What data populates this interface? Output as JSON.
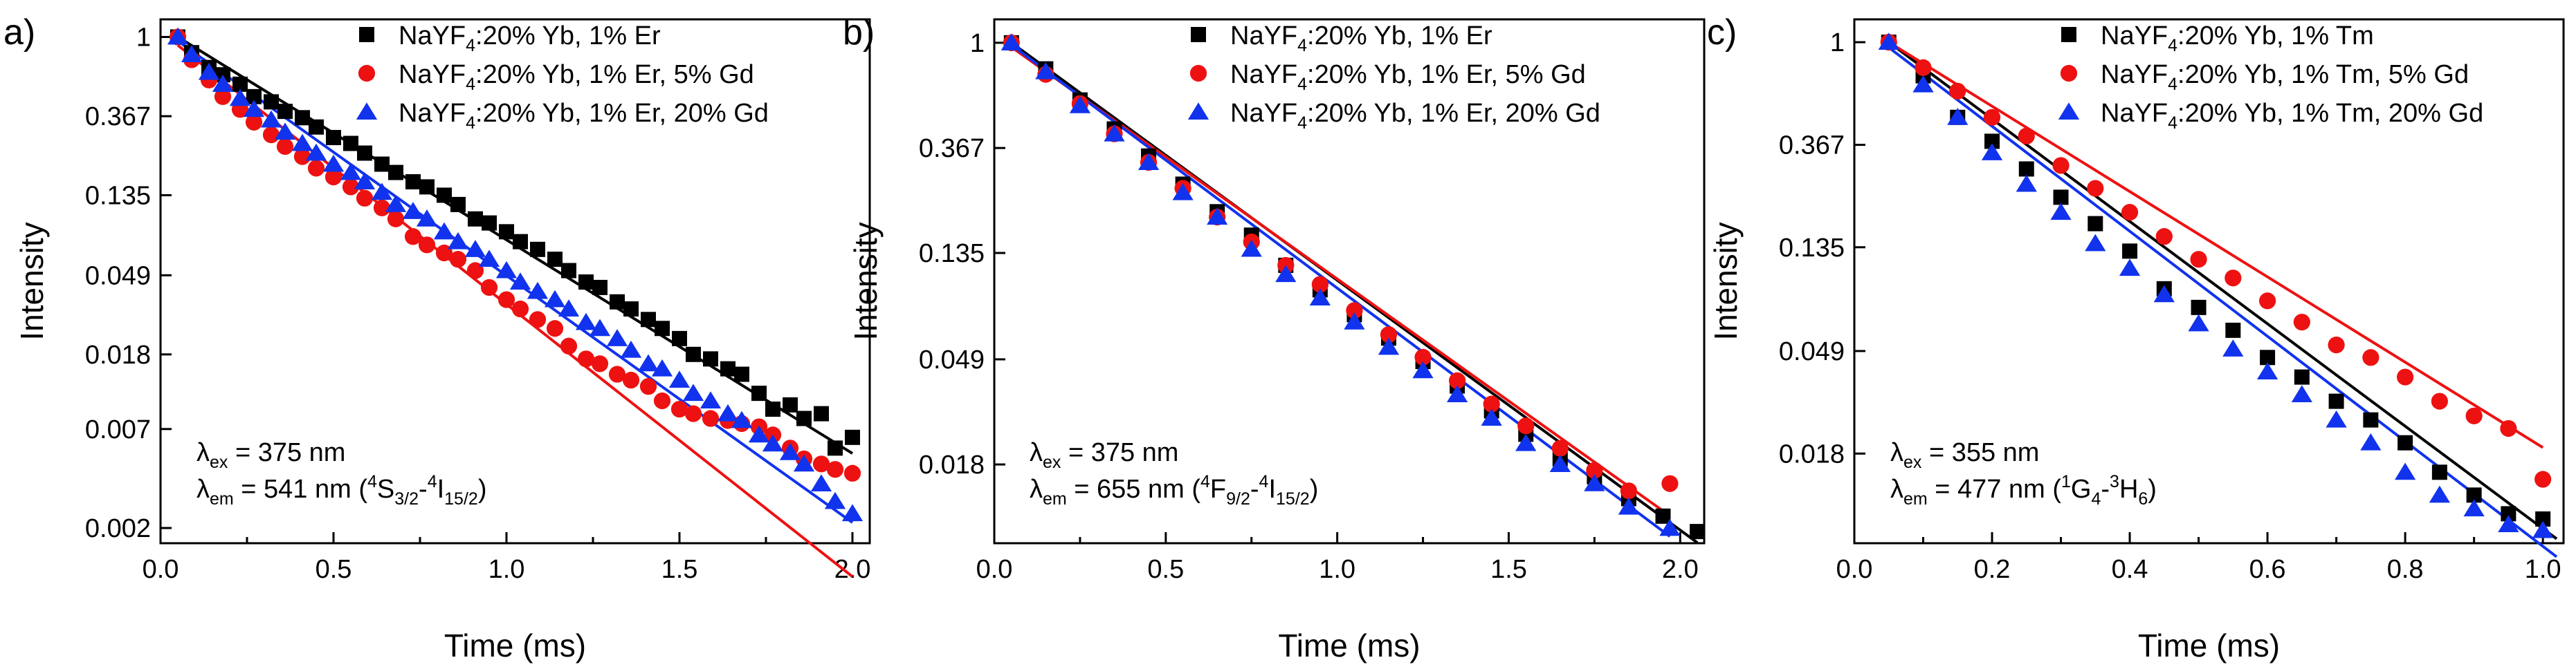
{
  "chart_data": [
    {
      "type": "scatter",
      "panel_label": "a)",
      "xlabel": "Time (ms)",
      "ylabel": "Intensity",
      "xlim": [
        0,
        2.05
      ],
      "ylim_log": [
        0.00165,
        1.25
      ],
      "xticks": [
        0.0,
        0.5,
        1.0,
        1.5,
        2.0
      ],
      "xtick_labels": [
        "0.0",
        "0.5",
        "1.0",
        "1.5",
        "2.0"
      ],
      "yticks": [
        1,
        0.367,
        0.135,
        0.049,
        0.018,
        0.007,
        0.002
      ],
      "ytick_labels": [
        "1",
        "0.367",
        "0.135",
        "0.049",
        "0.018",
        "0.007",
        "0.002"
      ],
      "annotation": {
        "ex": {
          "sym": "λ",
          "sub": "ex",
          "text": " = 375 nm"
        },
        "em": {
          "sym": "λ",
          "sub": "em",
          "text1": " = 541 nm (",
          "sup1": "4",
          "t2": "S",
          "sub2": "3/2",
          "t3": "-",
          "sup3": "4",
          "t4": "I",
          "sub4": "15/2",
          "t5": ")"
        }
      },
      "series": [
        {
          "name": "NaYF4:20% Yb, 1% Er",
          "legend": {
            "p1": "NaYF",
            "sub": "4",
            "p2": ":20% Yb, 1% Er"
          },
          "marker": "square",
          "color": "#000000",
          "fit": {
            "x0": 0.05,
            "x1": 2.0,
            "y0": 1.0,
            "tau": 0.37
          },
          "x": [
            0.05,
            0.09,
            0.14,
            0.18,
            0.23,
            0.27,
            0.32,
            0.36,
            0.41,
            0.45,
            0.5,
            0.55,
            0.59,
            0.64,
            0.68,
            0.73,
            0.77,
            0.82,
            0.86,
            0.91,
            0.95,
            1.0,
            1.04,
            1.09,
            1.14,
            1.18,
            1.23,
            1.27,
            1.32,
            1.36,
            1.41,
            1.45,
            1.5,
            1.54,
            1.59,
            1.64,
            1.68,
            1.73,
            1.77,
            1.82,
            1.86,
            1.91,
            1.95,
            2.0
          ],
          "y": [
            1.0,
            0.82,
            0.68,
            0.62,
            0.55,
            0.47,
            0.44,
            0.39,
            0.36,
            0.32,
            0.28,
            0.26,
            0.23,
            0.2,
            0.18,
            0.16,
            0.15,
            0.135,
            0.12,
            0.1,
            0.095,
            0.085,
            0.075,
            0.068,
            0.06,
            0.052,
            0.045,
            0.042,
            0.035,
            0.032,
            0.028,
            0.025,
            0.022,
            0.018,
            0.017,
            0.015,
            0.014,
            0.011,
            0.009,
            0.0095,
            0.008,
            0.0085,
            0.0055,
            0.0063
          ]
        },
        {
          "name": "NaYF4:20% Yb, 1% Er, 5% Gd",
          "legend": {
            "p1": "NaYF",
            "sub": "4",
            "p2": ":20% Yb, 1% Er, 5% Gd"
          },
          "marker": "circle",
          "color": "#ee1111",
          "fit": {
            "x0": 0.05,
            "x1": 2.0,
            "y0": 0.9,
            "tau": 0.29
          },
          "x": [
            0.05,
            0.09,
            0.14,
            0.18,
            0.23,
            0.27,
            0.32,
            0.36,
            0.41,
            0.45,
            0.5,
            0.55,
            0.59,
            0.64,
            0.68,
            0.73,
            0.77,
            0.82,
            0.86,
            0.91,
            0.95,
            1.0,
            1.04,
            1.09,
            1.14,
            1.18,
            1.23,
            1.27,
            1.32,
            1.36,
            1.41,
            1.45,
            1.5,
            1.54,
            1.59,
            1.64,
            1.68,
            1.73,
            1.77,
            1.82,
            1.86,
            1.91,
            1.95,
            2.0
          ],
          "y": [
            1.0,
            0.75,
            0.58,
            0.47,
            0.4,
            0.34,
            0.29,
            0.25,
            0.22,
            0.19,
            0.17,
            0.15,
            0.13,
            0.115,
            0.1,
            0.08,
            0.072,
            0.065,
            0.06,
            0.052,
            0.042,
            0.036,
            0.032,
            0.028,
            0.025,
            0.02,
            0.017,
            0.016,
            0.014,
            0.013,
            0.012,
            0.01,
            0.009,
            0.0085,
            0.008,
            0.0078,
            0.0075,
            0.0072,
            0.0065,
            0.0055,
            0.0048,
            0.0045,
            0.0042,
            0.004
          ]
        },
        {
          "name": "NaYF4:20% Yb, 1% Er, 20% Gd",
          "legend": {
            "p1": "NaYF",
            "sub": "4",
            "p2": ":20% Yb, 1% Er, 20% Gd"
          },
          "marker": "triangle",
          "color": "#1133ee",
          "fit": {
            "x0": 0.05,
            "x1": 2.0,
            "y0": 0.95,
            "tau": 0.32
          },
          "x": [
            0.05,
            0.09,
            0.14,
            0.18,
            0.23,
            0.27,
            0.32,
            0.36,
            0.41,
            0.45,
            0.5,
            0.55,
            0.59,
            0.64,
            0.68,
            0.73,
            0.77,
            0.82,
            0.86,
            0.91,
            0.95,
            1.0,
            1.04,
            1.09,
            1.14,
            1.18,
            1.23,
            1.27,
            1.32,
            1.36,
            1.41,
            1.45,
            1.5,
            1.54,
            1.59,
            1.64,
            1.68,
            1.73,
            1.77,
            1.82,
            1.86,
            1.91,
            1.95,
            2.0
          ],
          "y": [
            1.0,
            0.8,
            0.64,
            0.55,
            0.46,
            0.4,
            0.35,
            0.3,
            0.26,
            0.23,
            0.2,
            0.18,
            0.16,
            0.14,
            0.12,
            0.11,
            0.1,
            0.085,
            0.075,
            0.068,
            0.06,
            0.052,
            0.045,
            0.04,
            0.036,
            0.032,
            0.027,
            0.025,
            0.022,
            0.019,
            0.016,
            0.015,
            0.013,
            0.011,
            0.01,
            0.0085,
            0.0078,
            0.0065,
            0.0058,
            0.0052,
            0.0045,
            0.0035,
            0.0028,
            0.0024
          ]
        }
      ]
    },
    {
      "type": "scatter",
      "panel_label": "b)",
      "xlabel": "Time (ms)",
      "ylabel": "Intensity",
      "xlim": [
        0,
        2.07
      ],
      "ylim_log": [
        0.0085,
        1.25
      ],
      "xticks": [
        0.0,
        0.5,
        1.0,
        1.5,
        2.0
      ],
      "xtick_labels": [
        "0.0",
        "0.5",
        "1.0",
        "1.5",
        "2.0"
      ],
      "yticks": [
        1,
        0.367,
        0.135,
        0.049,
        0.018
      ],
      "ytick_labels": [
        "1",
        "0.367",
        "0.135",
        "0.049",
        "0.018"
      ],
      "annotation": {
        "ex": {
          "sym": "λ",
          "sub": "ex",
          "text": " = 375 nm"
        },
        "em": {
          "sym": "λ",
          "sub": "em",
          "text1": " = 655 nm (",
          "sup1": "4",
          "t2": "F",
          "sub2": "9/2",
          "t3": "-",
          "sup3": "4",
          "t4": "I",
          "sub4": "15/2",
          "t5": ")"
        }
      },
      "series": [
        {
          "name": "NaYF4:20% Yb, 1% Er",
          "legend": {
            "p1": "NaYF",
            "sub": "4",
            "p2": ":20% Yb, 1% Er"
          },
          "marker": "square",
          "color": "#000000",
          "fit": {
            "x0": 0.05,
            "x1": 2.05,
            "y0": 1.0,
            "tau": 0.42
          },
          "x": [
            0.05,
            0.15,
            0.25,
            0.35,
            0.45,
            0.55,
            0.65,
            0.75,
            0.85,
            0.95,
            1.05,
            1.15,
            1.25,
            1.35,
            1.45,
            1.55,
            1.65,
            1.75,
            1.85,
            1.95,
            2.05
          ],
          "y": [
            1.0,
            0.78,
            0.58,
            0.44,
            0.34,
            0.26,
            0.2,
            0.16,
            0.12,
            0.095,
            0.075,
            0.06,
            0.048,
            0.038,
            0.03,
            0.024,
            0.019,
            0.016,
            0.013,
            0.011,
            0.0095
          ]
        },
        {
          "name": "NaYF4:20% Yb, 1% Er, 5% Gd",
          "legend": {
            "p1": "NaYF",
            "sub": "4",
            "p2": ":20% Yb, 1% Er, 5% Gd"
          },
          "marker": "circle",
          "color": "#ee1111",
          "fit": {
            "x0": 0.05,
            "x1": 1.97,
            "y0": 0.96,
            "tau": 0.43
          },
          "x": [
            0.05,
            0.15,
            0.25,
            0.35,
            0.45,
            0.55,
            0.65,
            0.75,
            0.85,
            0.95,
            1.05,
            1.15,
            1.25,
            1.35,
            1.45,
            1.55,
            1.65,
            1.75,
            1.85,
            1.97
          ],
          "y": [
            1.0,
            0.74,
            0.56,
            0.42,
            0.32,
            0.25,
            0.19,
            0.15,
            0.12,
            0.1,
            0.078,
            0.062,
            0.05,
            0.04,
            0.032,
            0.026,
            0.021,
            0.017,
            0.014,
            0.015
          ]
        },
        {
          "name": "NaYF4:20% Yb, 1% Er, 20% Gd",
          "legend": {
            "p1": "NaYF",
            "sub": "4",
            "p2": ":20% Yb, 1% Er, 20% Gd"
          },
          "marker": "triangle",
          "color": "#1133ee",
          "fit": {
            "x0": 0.05,
            "x1": 1.97,
            "y0": 0.98,
            "tau": 0.41
          },
          "x": [
            0.05,
            0.15,
            0.25,
            0.35,
            0.45,
            0.55,
            0.65,
            0.75,
            0.85,
            0.95,
            1.05,
            1.15,
            1.25,
            1.35,
            1.45,
            1.55,
            1.65,
            1.75,
            1.85,
            1.97
          ],
          "y": [
            1.0,
            0.76,
            0.55,
            0.42,
            0.32,
            0.24,
            0.19,
            0.14,
            0.11,
            0.088,
            0.07,
            0.055,
            0.044,
            0.035,
            0.028,
            0.022,
            0.018,
            0.015,
            0.012,
            0.0098
          ]
        }
      ]
    },
    {
      "type": "scatter",
      "panel_label": "c)",
      "xlabel": "Time (ms)",
      "ylabel": "Intensity",
      "xlim": [
        0,
        1.03
      ],
      "ylim_log": [
        0.0075,
        1.25
      ],
      "xticks": [
        0.0,
        0.2,
        0.4,
        0.6,
        0.8,
        1.0
      ],
      "xtick_labels": [
        "0.0",
        "0.2",
        "0.4",
        "0.6",
        "0.8",
        "1.0"
      ],
      "yticks": [
        1,
        0.367,
        0.135,
        0.049,
        0.018
      ],
      "ytick_labels": [
        "1",
        "0.367",
        "0.135",
        "0.049",
        "0.018"
      ],
      "annotation": {
        "ex": {
          "sym": "λ",
          "sub": "ex",
          "text": " = 355 nm"
        },
        "em": {
          "sym": "λ",
          "sub": "em",
          "text1": " = 477 nm (",
          "sup1": "1",
          "t2": "G",
          "sub2": "4",
          "t3": "-",
          "sup3": "3",
          "t4": "H",
          "sub4": "6",
          "t5": ")"
        }
      },
      "series": [
        {
          "name": "NaYF4:20% Yb, 1% Tm",
          "legend": {
            "p1": "NaYF",
            "sub": "4",
            "p2": ":20% Yb, 1% Tm"
          },
          "marker": "square",
          "color": "#000000",
          "fit": {
            "x0": 0.05,
            "x1": 1.02,
            "y0": 1.0,
            "tau": 0.2
          },
          "x": [
            0.05,
            0.1,
            0.15,
            0.2,
            0.25,
            0.3,
            0.35,
            0.4,
            0.45,
            0.5,
            0.55,
            0.6,
            0.65,
            0.7,
            0.75,
            0.8,
            0.85,
            0.9,
            0.95,
            1.0
          ],
          "y": [
            1.0,
            0.72,
            0.48,
            0.38,
            0.29,
            0.22,
            0.17,
            0.13,
            0.09,
            0.075,
            0.06,
            0.046,
            0.038,
            0.03,
            0.025,
            0.02,
            0.015,
            0.012,
            0.01,
            0.0095
          ]
        },
        {
          "name": "NaYF4:20% Yb, 1% Tm, 5% Gd",
          "legend": {
            "p1": "NaYF",
            "sub": "4",
            "p2": ":20% Yb, 1% Tm, 5% Gd"
          },
          "marker": "circle",
          "color": "#ee1111",
          "fit": {
            "x0": 0.05,
            "x1": 1.0,
            "y0": 1.0,
            "tau": 0.24
          },
          "x": [
            0.05,
            0.1,
            0.15,
            0.2,
            0.25,
            0.3,
            0.35,
            0.4,
            0.45,
            0.5,
            0.55,
            0.6,
            0.65,
            0.7,
            0.75,
            0.8,
            0.85,
            0.9,
            0.95,
            1.0
          ],
          "y": [
            1.0,
            0.78,
            0.62,
            0.48,
            0.4,
            0.3,
            0.24,
            0.19,
            0.15,
            0.12,
            0.1,
            0.08,
            0.065,
            0.052,
            0.046,
            0.038,
            0.03,
            0.026,
            0.023,
            0.014
          ]
        },
        {
          "name": "NaYF4:20% Yb, 1% Tm, 20% Gd",
          "legend": {
            "p1": "NaYF",
            "sub": "4",
            "p2": ":20% Yb, 1% Tm, 20% Gd"
          },
          "marker": "triangle",
          "color": "#1133ee",
          "fit": {
            "x0": 0.05,
            "x1": 1.02,
            "y0": 0.95,
            "tau": 0.195
          },
          "x": [
            0.05,
            0.1,
            0.15,
            0.2,
            0.25,
            0.3,
            0.35,
            0.4,
            0.45,
            0.5,
            0.55,
            0.6,
            0.65,
            0.7,
            0.75,
            0.8,
            0.85,
            0.9,
            0.95,
            1.0
          ],
          "y": [
            1.0,
            0.66,
            0.48,
            0.34,
            0.25,
            0.19,
            0.14,
            0.11,
            0.085,
            0.064,
            0.05,
            0.04,
            0.032,
            0.025,
            0.02,
            0.015,
            0.012,
            0.0105,
            0.009,
            0.0085
          ]
        }
      ]
    }
  ]
}
